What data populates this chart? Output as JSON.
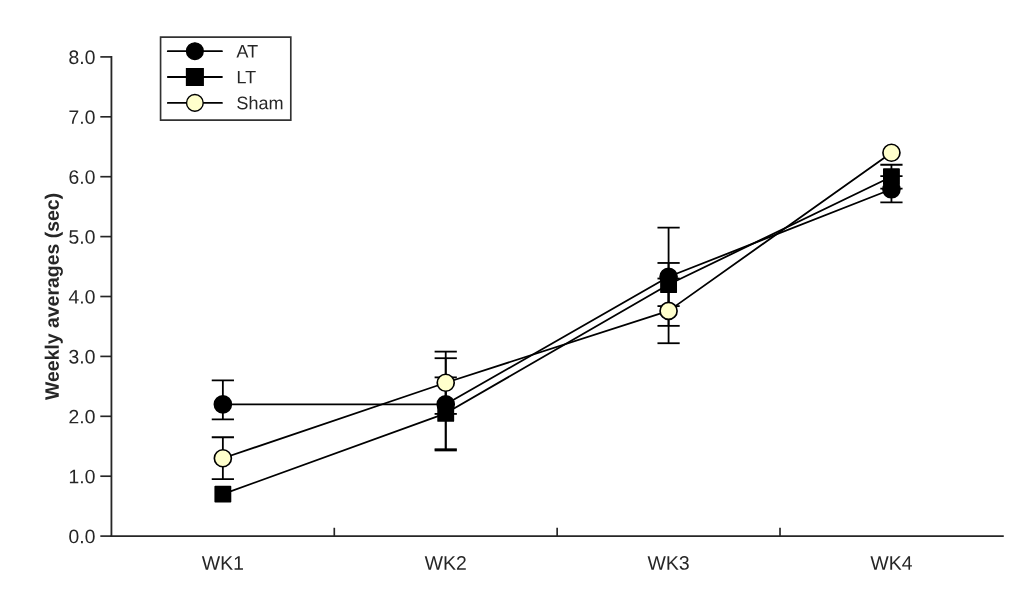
{
  "chart_data": {
    "type": "line",
    "ylabel": "Weekly averages (sec)",
    "categories": [
      "WK1",
      "WK2",
      "WK3",
      "WK4"
    ],
    "series": [
      {
        "name": "AT",
        "color": "#000000",
        "marker": "circle",
        "values": [
          2.2,
          2.2,
          4.33,
          5.79
        ],
        "errors": [
          [
            1.95,
            2.6
          ],
          0.77,
          0.82,
          0.22
        ]
      },
      {
        "name": "LT",
        "color": "#000000",
        "marker": "square",
        "values": [
          0.7,
          2.05,
          4.2,
          6.0
        ],
        "errors": [
          null,
          0.6,
          0.36,
          0.2
        ]
      },
      {
        "name": "Sham",
        "color": "#ffffcc",
        "marker": "circle",
        "values": [
          1.3,
          2.56,
          3.76,
          6.4
        ],
        "errors": [
          0.35,
          0.52,
          0.54,
          null
        ]
      }
    ],
    "ylim": [
      0,
      8
    ],
    "yticks": [
      {
        "value": 0,
        "label": "0.0"
      },
      {
        "value": 1,
        "label": "1.0"
      },
      {
        "value": 2,
        "label": "2.0"
      },
      {
        "value": 3,
        "label": "3.0"
      },
      {
        "value": 4,
        "label": "4.0"
      },
      {
        "value": 5,
        "label": "5.0"
      },
      {
        "value": 6,
        "label": "6.0"
      },
      {
        "value": 7,
        "label": "7.0"
      },
      {
        "value": 8,
        "label": "8.0"
      }
    ],
    "grid": false,
    "legend": "top left"
  }
}
